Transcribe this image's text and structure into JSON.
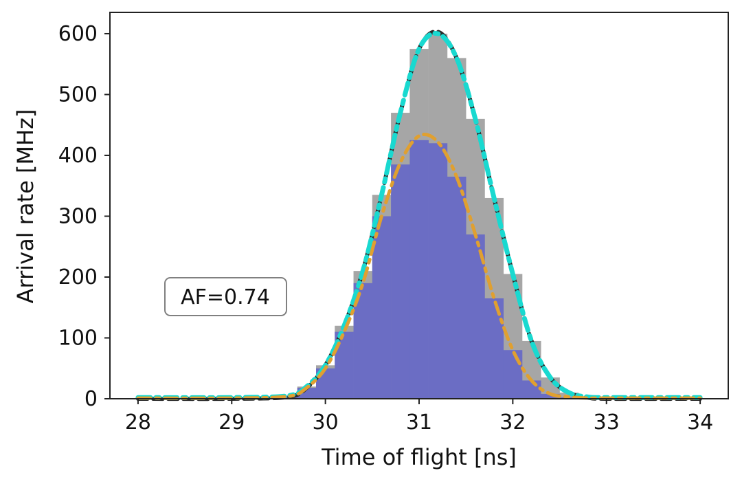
{
  "chart_data": {
    "type": "area",
    "title": "",
    "xlabel": "Time of flight [ns]",
    "ylabel": "Arrival rate [MHz]",
    "xlim": [
      27.7,
      34.3
    ],
    "ylim": [
      0,
      635
    ],
    "x_ticks": [
      28,
      29,
      30,
      31,
      32,
      33,
      34
    ],
    "x_tick_labels": [
      "28",
      "29",
      "30",
      "31",
      "32",
      "33",
      "34"
    ],
    "y_ticks": [
      0,
      100,
      200,
      300,
      400,
      500,
      600
    ],
    "y_tick_labels": [
      "0",
      "100",
      "200",
      "300",
      "400",
      "500",
      "600"
    ],
    "grid": false,
    "annotation": "AF=0.74",
    "series": [
      {
        "kind": "histogram",
        "color": "#a6a6a6",
        "x": [
          29.6,
          29.8,
          30.0,
          30.2,
          30.4,
          30.6,
          30.8,
          31.0,
          31.2,
          31.4,
          31.6,
          31.8,
          32.0,
          32.2,
          32.4,
          32.6,
          32.8
        ],
        "values": [
          5,
          20,
          55,
          120,
          210,
          335,
          470,
          575,
          600,
          560,
          460,
          330,
          205,
          95,
          35,
          10,
          2
        ]
      },
      {
        "kind": "histogram",
        "color": "#6b6dc4",
        "x": [
          29.6,
          29.8,
          30.0,
          30.2,
          30.4,
          30.6,
          30.8,
          31.0,
          31.2,
          31.4,
          31.6,
          31.8,
          32.0,
          32.2,
          32.4,
          32.6,
          32.8
        ],
        "values": [
          5,
          18,
          50,
          110,
          190,
          300,
          385,
          425,
          420,
          365,
          270,
          165,
          80,
          30,
          8,
          2,
          0
        ]
      },
      {
        "kind": "line",
        "style": "dashed",
        "color": "#2a2a2a",
        "x": [
          28.0,
          29.0,
          29.6,
          29.8,
          30.0,
          30.2,
          30.4,
          30.6,
          30.8,
          31.0,
          31.2,
          31.4,
          31.6,
          31.8,
          32.0,
          32.2,
          32.4,
          32.6,
          32.8,
          33.0,
          34.0
        ],
        "values": [
          0,
          0,
          3,
          18,
          55,
          120,
          210,
          335,
          470,
          575,
          603,
          560,
          460,
          330,
          205,
          95,
          35,
          10,
          2,
          0,
          0
        ]
      },
      {
        "kind": "line",
        "style": "dashdot",
        "color": "#19d9d0",
        "x": [
          28.0,
          29.0,
          29.6,
          29.8,
          30.0,
          30.2,
          30.4,
          30.6,
          30.8,
          31.0,
          31.2,
          31.4,
          31.6,
          31.8,
          32.0,
          32.2,
          32.4,
          32.6,
          32.8,
          33.0,
          34.0
        ],
        "values": [
          2,
          2,
          5,
          20,
          55,
          120,
          210,
          335,
          470,
          575,
          600,
          560,
          460,
          330,
          205,
          95,
          35,
          10,
          3,
          2,
          2
        ]
      },
      {
        "kind": "line",
        "style": "dashdot",
        "color": "#e0a030",
        "x": [
          28.0,
          29.0,
          29.6,
          29.8,
          30.0,
          30.2,
          30.4,
          30.6,
          30.8,
          31.0,
          31.2,
          31.4,
          31.6,
          31.8,
          32.0,
          32.2,
          32.4,
          32.6,
          32.8,
          33.0,
          34.0
        ],
        "values": [
          1,
          1,
          4,
          18,
          50,
          110,
          190,
          300,
          388,
          432,
          422,
          365,
          270,
          165,
          80,
          30,
          8,
          3,
          1,
          1,
          1
        ]
      }
    ]
  }
}
